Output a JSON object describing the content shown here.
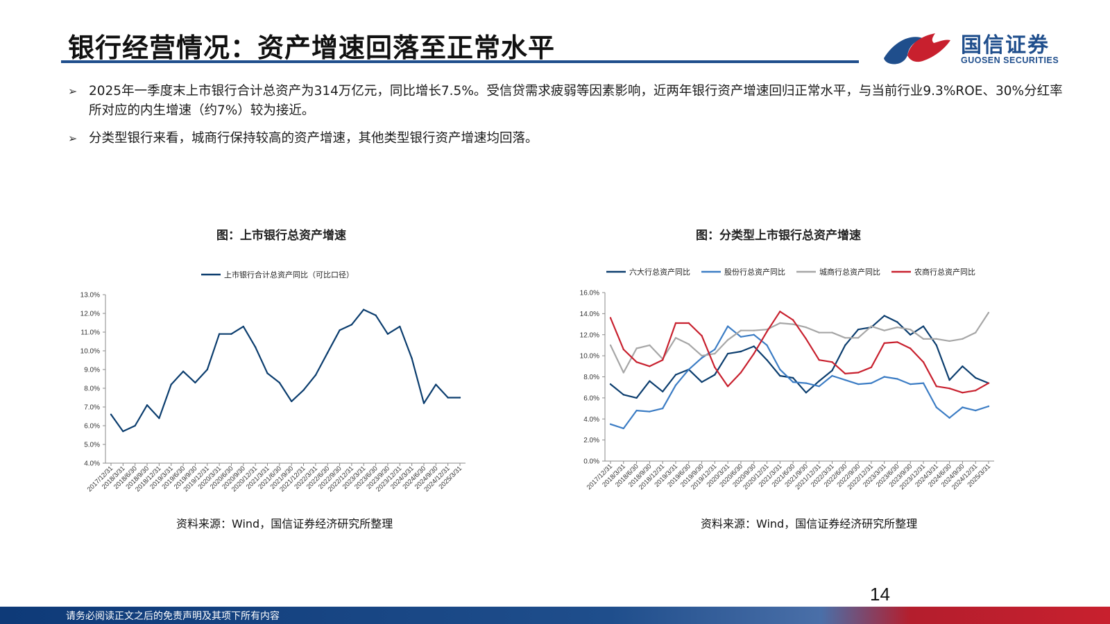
{
  "header": {
    "title": "银行经营情况：资产增速回落至正常水平",
    "logo_cn": "国信证券",
    "logo_en": "GUOSEN SECURITIES",
    "brand_blue": "#1f4e8c",
    "brand_red": "#c8202e"
  },
  "bullets": [
    "2025年一季度末上市银行合计总资产为314万亿元，同比增长7.5%。受信贷需求疲弱等因素影响，近两年银行资产增速回归正常水平，与当前行业9.3%ROE、30%分红率所对应的内生增速（约7%）较为接近。",
    "分类型银行来看，城商行保持较高的资产增速，其他类型银行资产增速均回落。"
  ],
  "charts": {
    "left": {
      "title": "图：上市银行总资产增速",
      "source": "资料来源：Wind，国信证券经济研究所整理"
    },
    "right": {
      "title": "图：分类型上市银行总资产增速",
      "source": "资料来源：Wind，国信证券经济研究所整理"
    }
  },
  "chart_data": [
    {
      "type": "line",
      "title": "图：上市银行总资产增速",
      "categories": [
        "2017/12/31",
        "2018/3/31",
        "2018/6/30",
        "2018/9/30",
        "2018/12/31",
        "2019/3/31",
        "2019/6/30",
        "2019/9/30",
        "2019/12/31",
        "2020/3/31",
        "2020/6/30",
        "2020/9/30",
        "2020/12/31",
        "2021/3/31",
        "2021/6/30",
        "2021/9/30",
        "2021/12/31",
        "2022/3/31",
        "2022/6/30",
        "2022/9/30",
        "2022/12/31",
        "2023/3/31",
        "2023/6/30",
        "2023/9/30",
        "2023/12/31",
        "2024/3/31",
        "2024/6/30",
        "2024/9/30",
        "2024/12/31",
        "2025/3/31"
      ],
      "yticks": [
        "4.0%",
        "5.0%",
        "6.0%",
        "7.0%",
        "8.0%",
        "9.0%",
        "10.0%",
        "11.0%",
        "12.0%",
        "13.0%"
      ],
      "ylim": [
        4,
        13
      ],
      "legend": "top",
      "series": [
        {
          "name": "上市银行合计总资产同比（可比口径）",
          "color": "#0b3d6e",
          "values": [
            6.6,
            5.7,
            6.0,
            7.1,
            6.4,
            8.2,
            8.9,
            8.3,
            9.0,
            10.9,
            10.9,
            11.3,
            10.2,
            8.8,
            8.3,
            7.3,
            7.9,
            8.7,
            9.9,
            11.1,
            11.4,
            12.2,
            11.9,
            10.9,
            11.3,
            9.6,
            7.2,
            8.2,
            7.5,
            7.5
          ]
        }
      ]
    },
    {
      "type": "line",
      "title": "图：分类型上市银行总资产增速",
      "categories": [
        "2017/12/31",
        "2018/3/31",
        "2018/6/30",
        "2018/9/30",
        "2018/12/31",
        "2019/3/31",
        "2019/6/30",
        "2019/9/30",
        "2019/12/31",
        "2020/3/31",
        "2020/6/30",
        "2020/9/30",
        "2020/12/31",
        "2021/3/31",
        "2021/6/30",
        "2021/9/30",
        "2021/12/31",
        "2022/3/31",
        "2022/6/30",
        "2022/9/30",
        "2022/12/31",
        "2023/3/31",
        "2023/6/30",
        "2023/9/30",
        "2023/12/31",
        "2024/3/31",
        "2024/6/30",
        "2024/9/30",
        "2024/12/31",
        "2025/3/31"
      ],
      "yticks": [
        "0.0%",
        "2.0%",
        "4.0%",
        "6.0%",
        "8.0%",
        "10.0%",
        "12.0%",
        "14.0%",
        "16.0%"
      ],
      "ylim": [
        0,
        16
      ],
      "legend": "top",
      "series": [
        {
          "name": "六大行总资产同比",
          "color": "#0b3d6e",
          "values": [
            7.3,
            6.3,
            6.0,
            7.6,
            6.6,
            8.2,
            8.7,
            7.5,
            8.2,
            10.2,
            10.4,
            10.9,
            9.6,
            8.1,
            7.9,
            6.5,
            7.6,
            8.6,
            11.0,
            12.5,
            12.7,
            13.8,
            13.2,
            12.0,
            12.8,
            11.0,
            7.7,
            9.0,
            7.9,
            7.4
          ]
        },
        {
          "name": "股份行总资产同比",
          "color": "#3b7cc4",
          "values": [
            3.5,
            3.1,
            4.8,
            4.7,
            5.0,
            7.2,
            8.7,
            9.8,
            10.6,
            12.8,
            11.8,
            12.0,
            11.0,
            8.7,
            7.5,
            7.4,
            7.1,
            8.1,
            7.7,
            7.3,
            7.4,
            8.0,
            7.8,
            7.3,
            7.4,
            5.1,
            4.1,
            5.1,
            4.8,
            5.2
          ]
        },
        {
          "name": "城商行总资产同比",
          "color": "#a6a6a6",
          "values": [
            11.0,
            8.4,
            10.7,
            11.0,
            9.7,
            11.7,
            11.1,
            10.0,
            10.2,
            11.5,
            12.4,
            12.4,
            12.5,
            13.1,
            13.0,
            12.7,
            12.2,
            12.2,
            11.7,
            11.7,
            12.8,
            12.4,
            12.7,
            12.5,
            11.6,
            11.6,
            11.4,
            11.6,
            12.2,
            14.1
          ]
        },
        {
          "name": "农商行总资产同比",
          "color": "#c8202e",
          "values": [
            13.6,
            10.6,
            9.4,
            9.0,
            9.6,
            13.1,
            13.1,
            11.9,
            8.9,
            7.1,
            8.4,
            10.2,
            12.3,
            14.2,
            13.4,
            11.6,
            9.6,
            9.4,
            8.3,
            8.4,
            8.9,
            11.2,
            11.3,
            10.7,
            9.4,
            7.1,
            6.9,
            6.5,
            6.7,
            7.4
          ]
        }
      ]
    }
  ],
  "footer": {
    "page_number": "14",
    "disclaimer": "请务必阅读正文之后的免责声明及其项下所有内容"
  }
}
